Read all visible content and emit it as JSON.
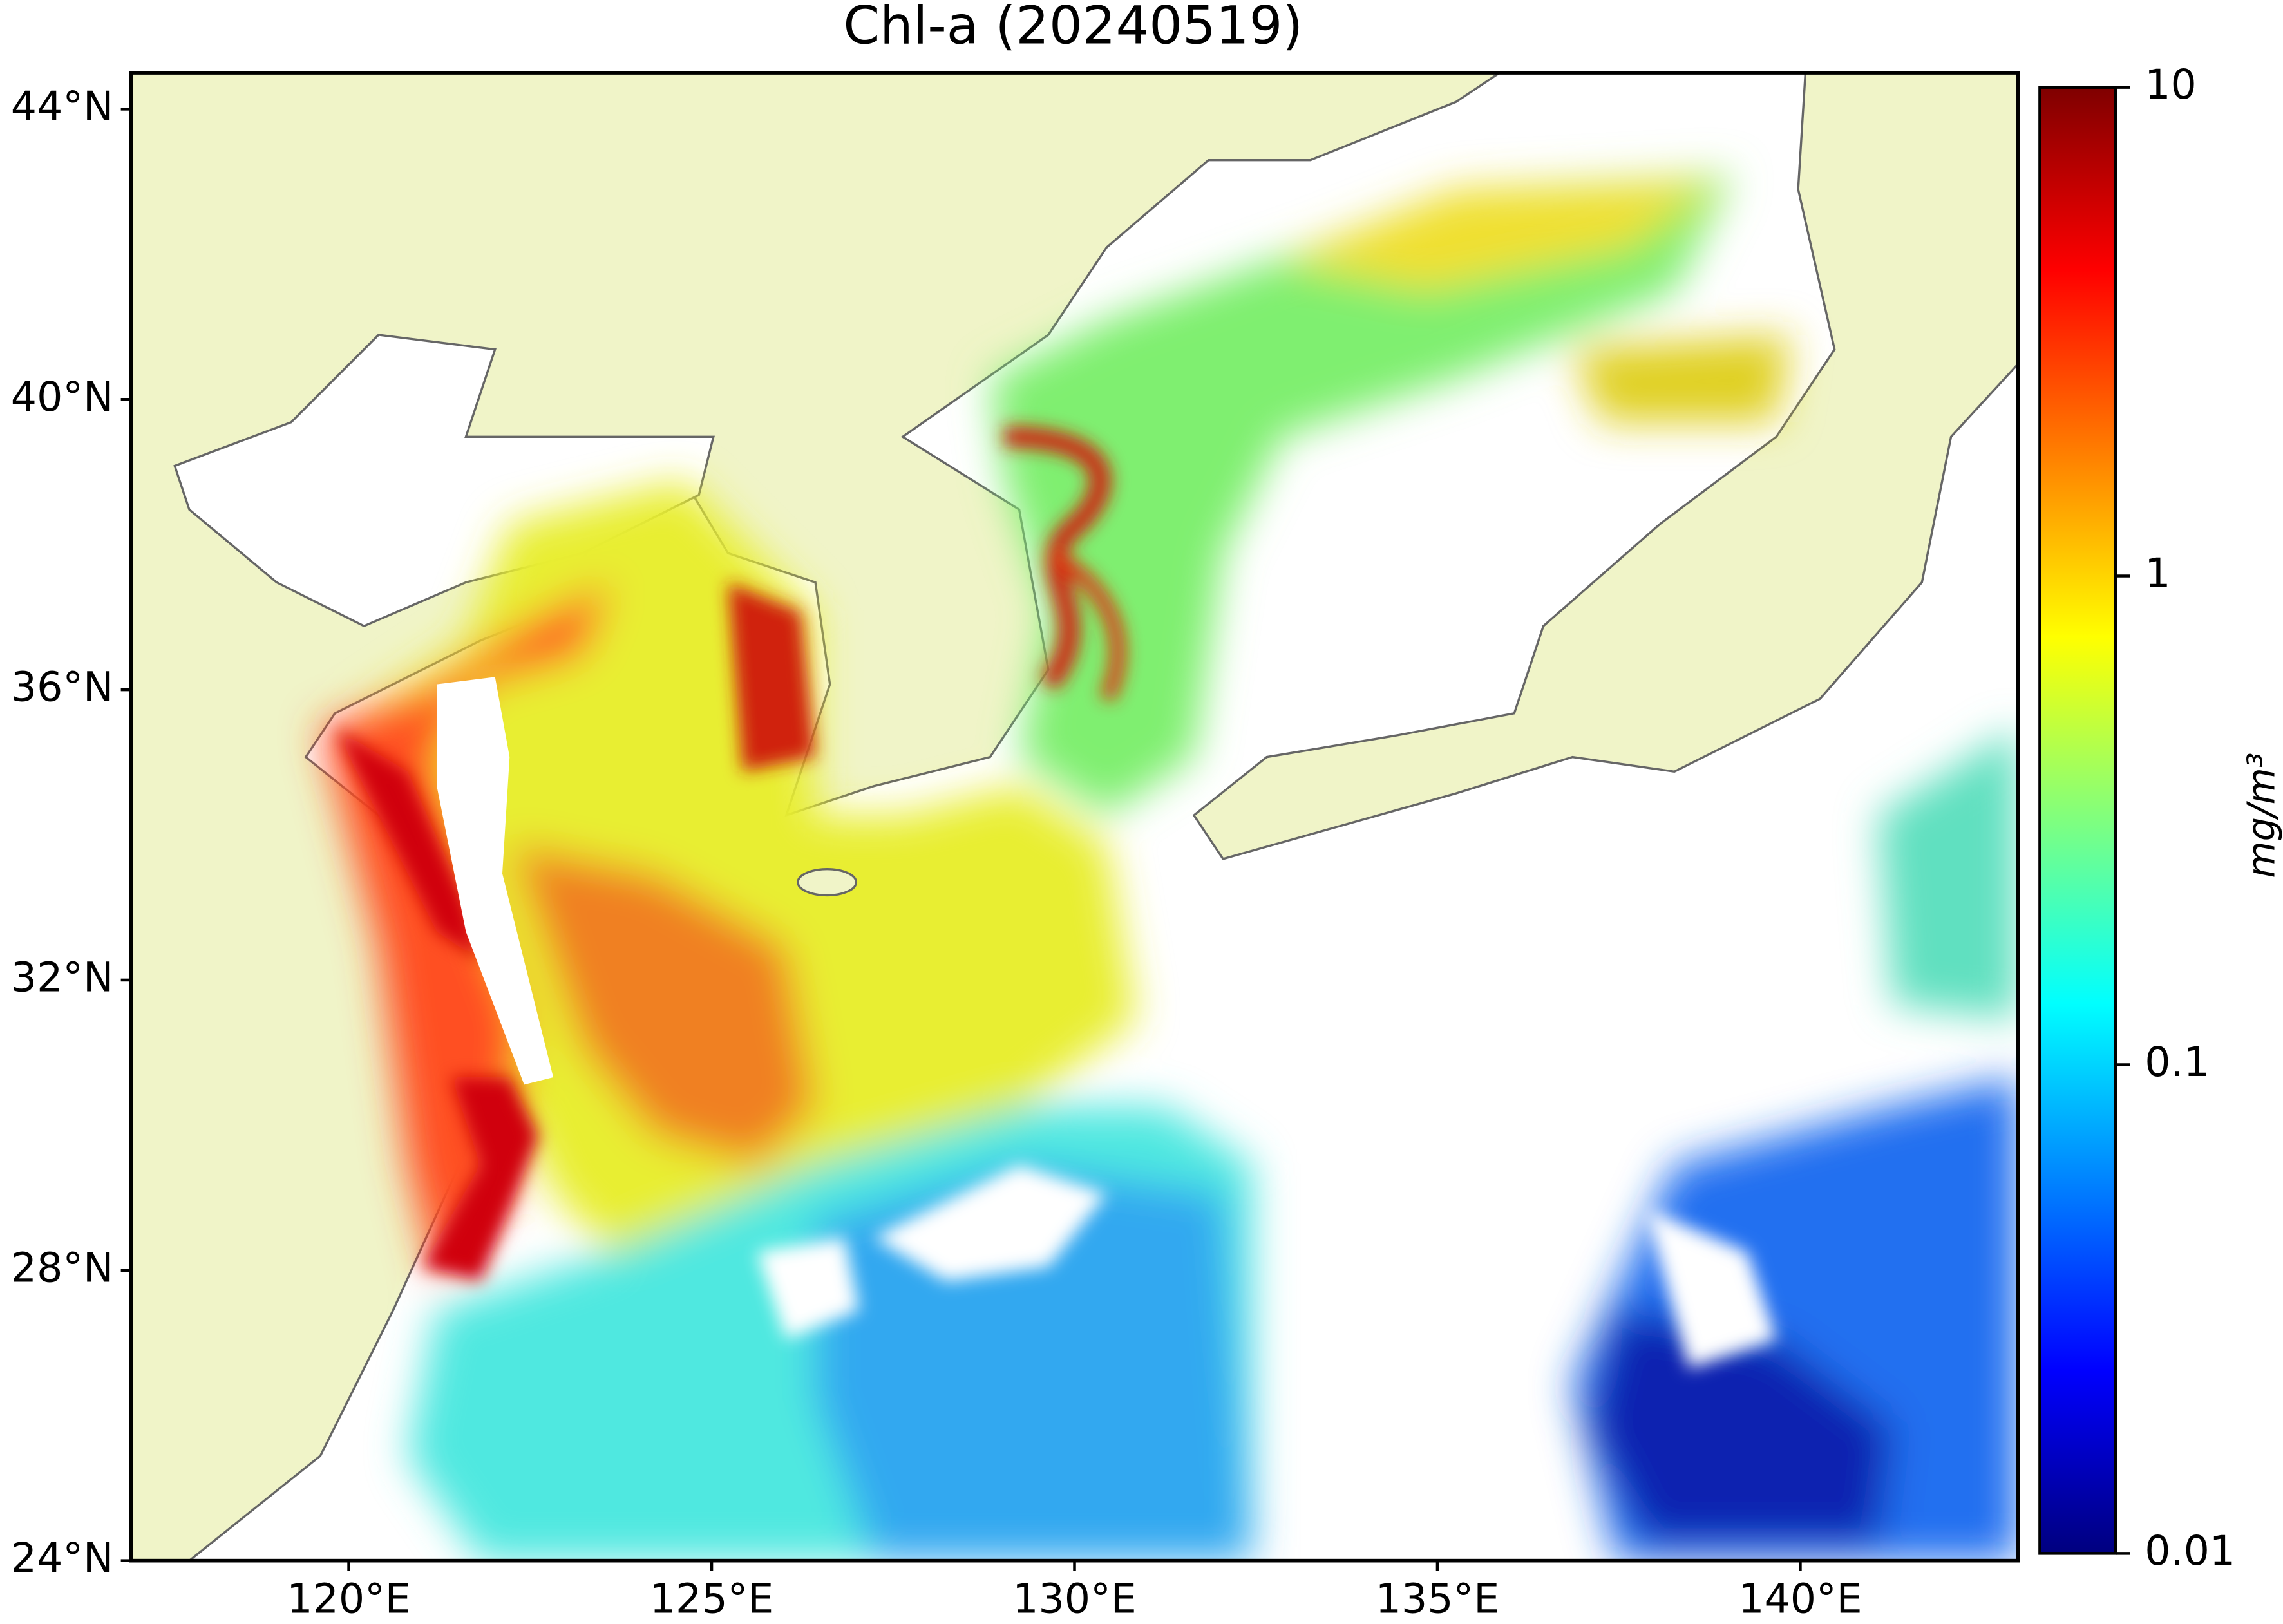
{
  "title": "Chl-a (20240519)",
  "map": {
    "xlim": [
      117,
      143
    ],
    "ylim": [
      24,
      44.5
    ],
    "xticks": [
      {
        "value": 120,
        "label": "120°E"
      },
      {
        "value": 125,
        "label": "125°E"
      },
      {
        "value": 130,
        "label": "130°E"
      },
      {
        "value": 135,
        "label": "135°E"
      },
      {
        "value": 140,
        "label": "140°E"
      }
    ],
    "yticks": [
      {
        "value": 24,
        "label": "24°N"
      },
      {
        "value": 28,
        "label": "28°N"
      },
      {
        "value": 32,
        "label": "32°N"
      },
      {
        "value": 36,
        "label": "36°N"
      },
      {
        "value": 40,
        "label": "40°N"
      },
      {
        "value": 44,
        "label": "44°N"
      }
    ]
  },
  "colorbar": {
    "scale": "log",
    "lim": [
      0.01,
      10
    ],
    "ticks": [
      0.01,
      0.1,
      1,
      10
    ],
    "label": "mg/m³",
    "colormap": "jet"
  }
}
